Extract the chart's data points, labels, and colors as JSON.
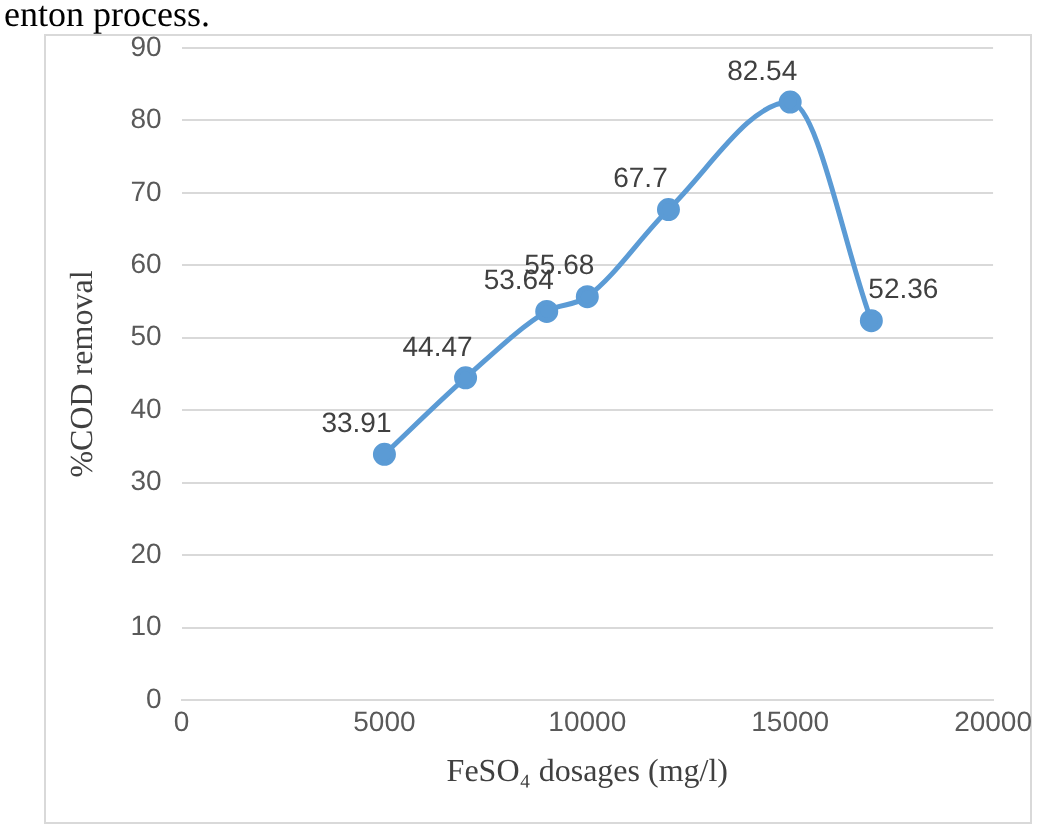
{
  "chart_data": {
    "type": "line",
    "xlabel": "FeSO₄ dosages (mg/l)",
    "ylabel": "%COD removal",
    "annotations": [
      "enton process."
    ],
    "x": [
      5000,
      7000,
      9000,
      10000,
      12000,
      15000,
      17000
    ],
    "series": [
      {
        "color": "#5b9bd5",
        "values": [
          33.91,
          44.47,
          53.64,
          55.68,
          67.7,
          82.54,
          52.36
        ]
      }
    ],
    "xlim": [
      0,
      20000
    ],
    "xticks": [
      0,
      5000,
      10000,
      15000,
      20000
    ],
    "ylim": [
      0,
      90
    ],
    "yticks": [
      0,
      10,
      20,
      30,
      40,
      50,
      60,
      70,
      80,
      90
    ],
    "grid": "y",
    "marker": "circle",
    "line_style": "solid",
    "data_labels": true,
    "legend": false
  }
}
